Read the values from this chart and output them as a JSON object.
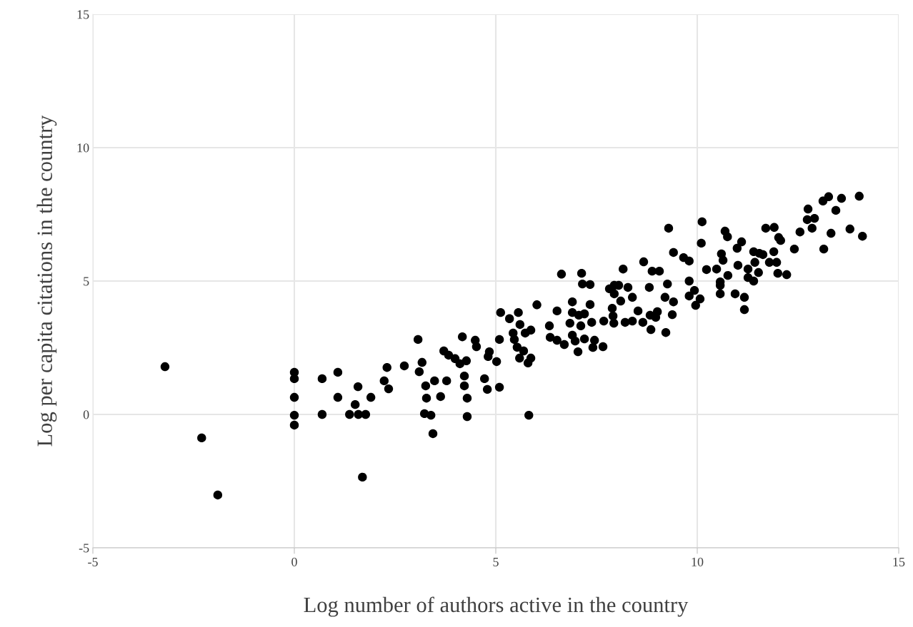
{
  "chart_data": {
    "type": "scatter",
    "xlabel": "Log number of authors active in the country",
    "ylabel": "Log per capita citations in the country",
    "xlim": [
      -5,
      15
    ],
    "ylim": [
      -5,
      15
    ],
    "xticks": [
      -5,
      0,
      5,
      10,
      15
    ],
    "yticks": [
      -5,
      0,
      5,
      10,
      15
    ],
    "grid": true,
    "marker": "circle",
    "series": [
      {
        "color": "#000000",
        "x": [
          -3.21,
          -2.3,
          -1.9,
          0,
          0,
          0,
          0,
          0,
          0.69,
          0.69,
          1.08,
          1.08,
          1.37,
          1.59,
          1.77,
          1.51,
          1.58,
          1.9,
          1.69,
          2.23,
          2.34,
          2.3,
          3.44,
          3.07,
          2.73,
          3.17,
          3.1,
          3.26,
          3.48,
          3.78,
          3.28,
          3.63,
          3.23,
          3.39,
          4.29,
          4.29,
          4.22,
          4.22,
          4.72,
          4.79,
          4.17,
          3.71,
          3.83,
          3.99,
          4.11,
          4.27,
          4.49,
          4.52,
          4.84,
          4.81,
          6.63,
          7.13,
          7.15,
          7.34,
          6.02,
          5.12,
          5.34,
          5.56,
          5.6,
          5.73,
          5.87,
          5.43,
          5.46,
          5.09,
          5.53,
          5.69,
          5.59,
          5.87,
          5.8,
          5.02,
          5.09,
          5.82,
          6.33,
          6.52,
          6.35,
          6.52,
          6.7,
          6.9,
          6.9,
          6.84,
          7.06,
          7.2,
          7.11,
          7.38,
          7.34,
          6.9,
          6.97,
          7.2,
          7.45,
          7.04,
          7.41,
          7.66,
          7.68,
          7.89,
          7.91,
          7.93,
          7.82,
          7.94,
          8.05,
          7.94,
          8.1,
          8.28,
          8.39,
          8.16,
          8.67,
          8.88,
          9.06,
          8.81,
          9.26,
          9.2,
          9.41,
          9.38,
          9.22,
          8.21,
          8.39,
          8.53,
          8.65,
          8.83,
          9.01,
          8.97,
          8.85,
          9.29,
          9.41,
          9.66,
          9.8,
          9.8,
          9.93,
          9.8,
          10.07,
          9.96,
          10.12,
          10.1,
          10.23,
          10.48,
          10.69,
          10.75,
          11.1,
          10.99,
          10.6,
          10.64,
          10.57,
          10.57,
          10.57,
          10.94,
          11.17,
          11.17,
          10.76,
          11.01,
          11.26,
          11.26,
          11.4,
          11.43,
          11.4,
          11.54,
          11.63,
          11.52,
          11.79,
          11.97,
          11.9,
          12.0,
          12.22,
          11.7,
          11.91,
          12.02,
          12.07,
          12.41,
          12.55,
          12.75,
          12.73,
          12.91,
          12.85,
          13.12,
          13.26,
          13.58,
          13.44,
          13.32,
          13.14,
          13.79,
          14.02,
          14.1
        ],
        "values": [
          1.79,
          -0.88,
          -3.02,
          1.58,
          1.34,
          0.64,
          -0.03,
          -0.4,
          1.34,
          0,
          1.58,
          0.64,
          0,
          0,
          0,
          0.37,
          1.04,
          0.64,
          -2.35,
          1.26,
          0.96,
          1.76,
          -0.72,
          2.81,
          1.82,
          1.95,
          1.6,
          1.07,
          1.26,
          1.26,
          0.61,
          0.67,
          0.03,
          -0.03,
          -0.08,
          0.61,
          1.07,
          1.44,
          1.34,
          0.94,
          2.91,
          2.38,
          2.22,
          2.09,
          1.9,
          2.01,
          2.78,
          2.54,
          2.35,
          2.17,
          5.26,
          5.29,
          4.89,
          4.87,
          4.11,
          3.82,
          3.59,
          3.82,
          3.37,
          3.05,
          3.16,
          3.05,
          2.81,
          2.81,
          2.52,
          2.38,
          2.11,
          2.11,
          1.93,
          1.98,
          1.02,
          -0.03,
          3.32,
          3.88,
          2.89,
          2.78,
          2.62,
          4.22,
          3.82,
          3.42,
          3.72,
          3.77,
          3.32,
          3.45,
          4.12,
          2.97,
          2.75,
          2.83,
          2.78,
          2.35,
          2.51,
          2.54,
          3.5,
          3.98,
          3.69,
          3.42,
          4.71,
          4.84,
          4.84,
          4.52,
          4.25,
          4.76,
          4.39,
          5.45,
          5.72,
          5.37,
          5.37,
          4.76,
          4.89,
          4.39,
          4.22,
          3.74,
          3.07,
          3.45,
          3.5,
          3.88,
          3.45,
          3.72,
          3.85,
          3.64,
          3.18,
          6.98,
          6.07,
          5.88,
          5.75,
          5.0,
          4.65,
          4.44,
          4.33,
          4.09,
          7.22,
          6.42,
          5.43,
          5.45,
          6.87,
          6.66,
          6.47,
          6.23,
          6.02,
          5.78,
          4.97,
          4.84,
          4.52,
          4.52,
          4.39,
          3.93,
          5.21,
          5.59,
          5.45,
          5.13,
          5.0,
          5.7,
          6.1,
          6.04,
          5.99,
          5.32,
          5.7,
          5.7,
          6.1,
          5.29,
          5.24,
          6.98,
          7.01,
          6.63,
          6.52,
          6.2,
          6.84,
          7.7,
          7.3,
          7.35,
          6.98,
          8.0,
          8.16,
          8.1,
          7.65,
          6.79,
          6.2,
          6.95,
          8.18,
          6.68
        ]
      }
    ]
  }
}
